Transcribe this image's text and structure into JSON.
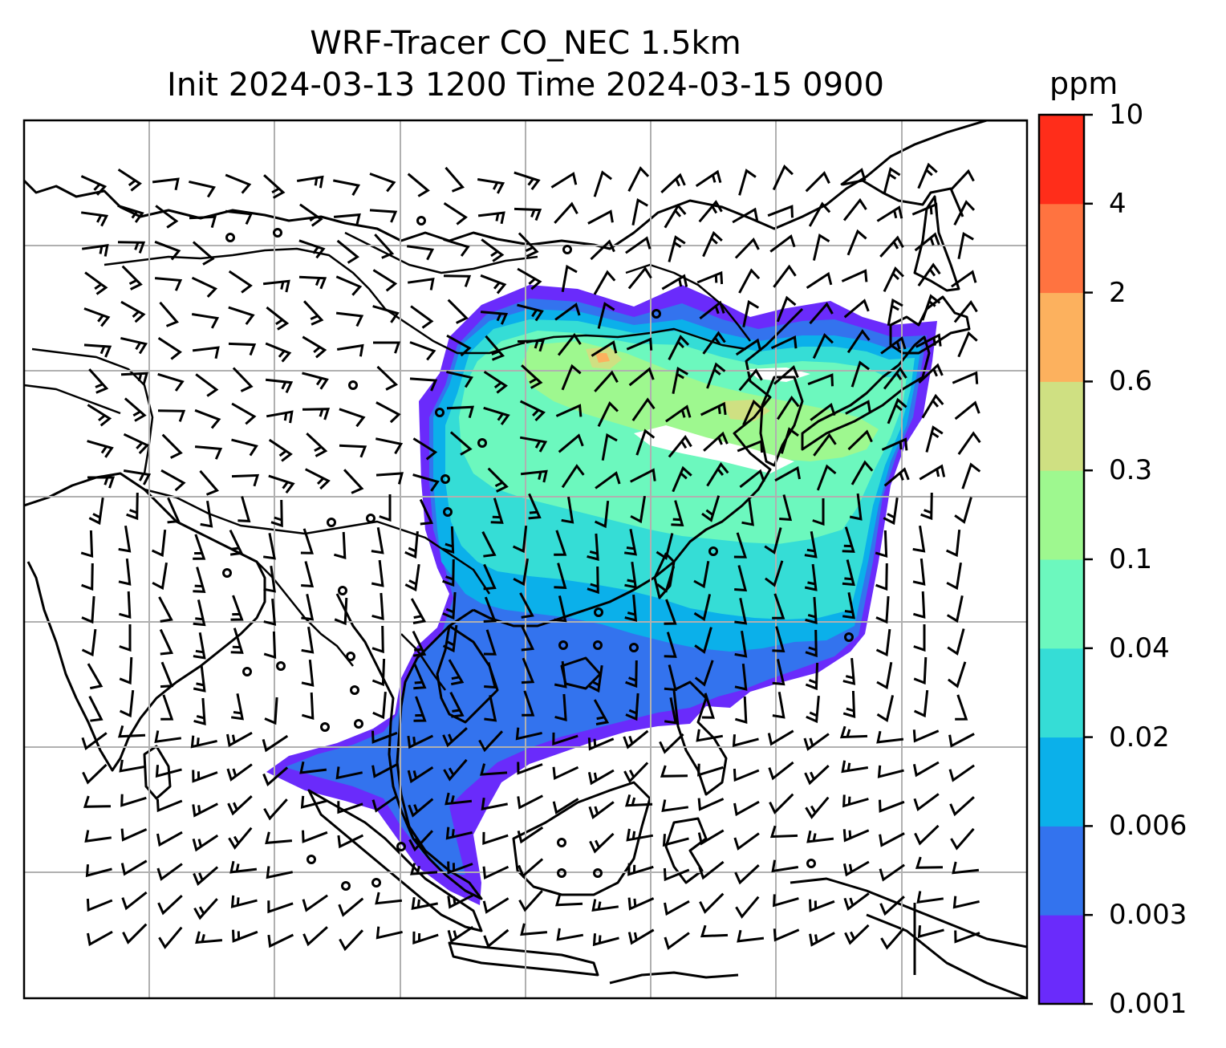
{
  "title": {
    "line1": "WRF-Tracer CO_NEC 1.5km",
    "line2": "Init 2024-03-13 1200 Time 2024-03-15 0900"
  },
  "colorbar": {
    "unit": "ppm",
    "levels": [
      "0.001",
      "0.003",
      "0.006",
      "0.02",
      "0.04",
      "0.1",
      "0.3",
      "0.6",
      "2",
      "4",
      "10"
    ],
    "colors": [
      "#6a2bfb",
      "#3373ee",
      "#0bb0ea",
      "#35ddd6",
      "#6cf8be",
      "#9ef88f",
      "#cfe082",
      "#fcb15e",
      "#ff7340",
      "#ff2d1a"
    ]
  },
  "map": {
    "field": "CO_NEC tracer concentration at 1.5km",
    "overlay": "wind barbs",
    "gridlines": true
  }
}
